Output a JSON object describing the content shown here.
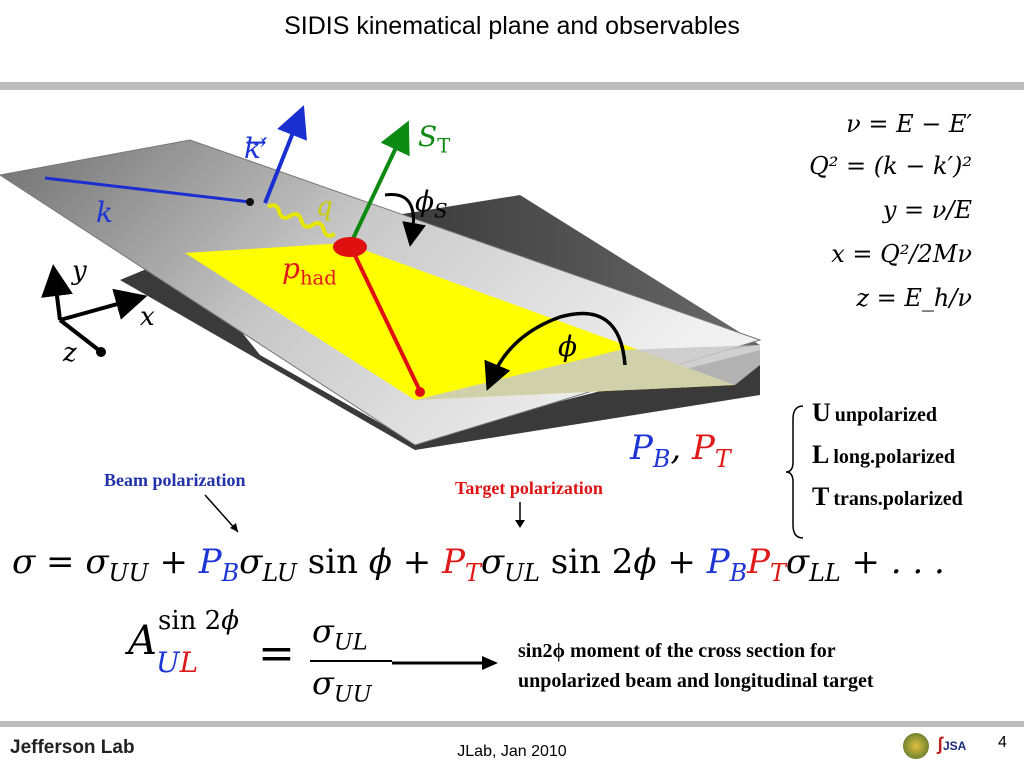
{
  "slide": {
    "title": "SIDIS kinematical plane and observables",
    "page_number": "4",
    "footer_center": "JLab, Jan 2010",
    "footer_logo": "Jefferson Lab",
    "footer_logo_small": "JSA"
  },
  "diagram": {
    "labels": {
      "k_prime": "k′",
      "k": "k",
      "q": "q",
      "S_T": "S",
      "S_T_sub": "T",
      "phi_S": "ϕ",
      "phi_S_sub": "S",
      "p_had": "p",
      "p_had_sub": "had",
      "phi": "ϕ",
      "axis_x": "x",
      "axis_y": "y",
      "axis_z": "z"
    },
    "colors": {
      "beam_vector": "#1a2fd0",
      "spin_vector": "#0d8a12",
      "hadron_vector": "#e01010",
      "hadron_plane": "#ffff00",
      "lepton_plane": "#9a9a9a"
    }
  },
  "kinematics": [
    {
      "lhs": "ν",
      "rhs": "E − E′"
    },
    {
      "lhs": "Q²",
      "rhs": "(k − k′)²"
    },
    {
      "lhs": "y",
      "rhs": "ν/E"
    },
    {
      "lhs": "x",
      "rhs": "Q²/2Mν"
    },
    {
      "lhs": "z",
      "rhs": "E_h/ν"
    }
  ],
  "polarizations": {
    "PB": "P",
    "PB_sub": "B",
    "PT": "P",
    "PT_sub": "T",
    "items": [
      {
        "letter": "U",
        "text": "unpolarized"
      },
      {
        "letter": "L",
        "text": "long.polarized"
      },
      {
        "letter": "T",
        "text": "trans.polarized"
      }
    ]
  },
  "annotations": {
    "beam_polarization": "Beam polarization",
    "target_polarization": "Target polarization",
    "moment_line1": "sin2ϕ moment of the cross section for",
    "moment_line2": "unpolarized beam and longitudinal target"
  }
}
